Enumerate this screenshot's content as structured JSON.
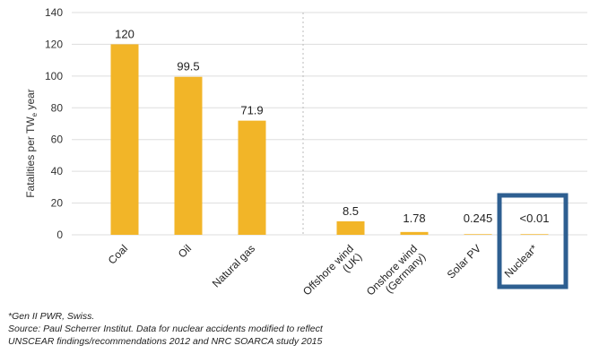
{
  "chart_data": {
    "type": "bar",
    "ylabel": "Fatalities per TWe year",
    "ylabel_parts": {
      "main": "Fatalities per TW",
      "sub": "e",
      "tail": " year"
    },
    "ylim": [
      0,
      140
    ],
    "yticks": [
      0,
      20,
      40,
      60,
      80,
      100,
      120,
      140
    ],
    "grid": true,
    "categories": [
      "Coal",
      "Oil",
      "Natural gas",
      "Offshore wind\n(UK)",
      "Onshore wind\n(Germany)",
      "Solar PV",
      "Nuclear*"
    ],
    "values": [
      120,
      99.5,
      71.9,
      8.5,
      1.78,
      0.245,
      0.01
    ],
    "value_labels": [
      "120",
      "99.5",
      "71.9",
      "8.5",
      "1.78",
      "0.245",
      "<0.01"
    ],
    "highlighted_category": "Nuclear*",
    "colors": {
      "bar": "#F2B528",
      "highlight_box": "#2E5F91",
      "grid": "#DDDDDD",
      "divider": "#BBBBBB"
    }
  },
  "footnotes": {
    "note": "*Gen II PWR, Swiss.",
    "source_line1": "Source: Paul Scherrer Institut. Data for nuclear accidents modified to reflect",
    "source_line2": "UNSCEAR findings/recommendations 2012 and NRC SOARCA study 2015"
  }
}
